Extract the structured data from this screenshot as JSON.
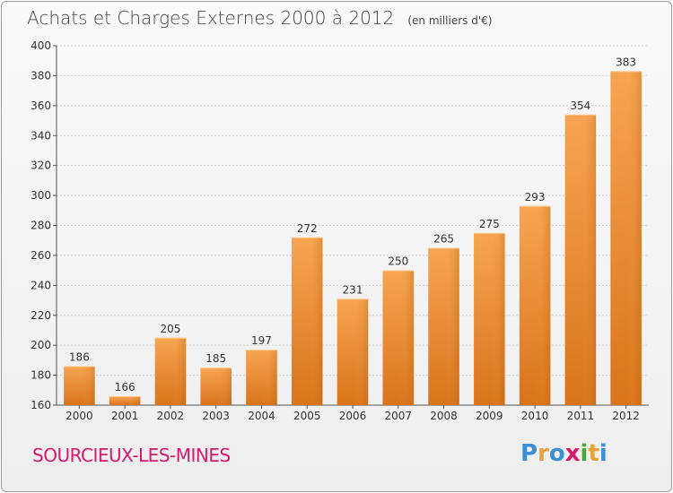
{
  "chart_data": {
    "type": "bar",
    "title": "Achats et Charges Externes 2000 à 2012",
    "subtitle": "(en milliers d'€)",
    "categories": [
      "2000",
      "2001",
      "2002",
      "2003",
      "2004",
      "2005",
      "2006",
      "2007",
      "2008",
      "2009",
      "2010",
      "2011",
      "2012"
    ],
    "values": [
      186,
      166,
      205,
      185,
      197,
      272,
      231,
      250,
      265,
      275,
      293,
      354,
      383
    ],
    "ylim": [
      160,
      400
    ],
    "yticks": [
      160,
      180,
      200,
      220,
      240,
      260,
      280,
      300,
      320,
      340,
      360,
      380,
      400
    ],
    "xlabel": "",
    "ylabel": "",
    "grid": true,
    "bar_color": "#f0902a"
  },
  "town": "SOURCIEUX-LES-MINES",
  "brand": {
    "letters": [
      "P",
      "r",
      "o",
      "x",
      "i",
      "t",
      "i"
    ],
    "colors": [
      "#3a8fd6",
      "#e8a23a",
      "#3a8fd6",
      "#d6196a",
      "#4aa83a",
      "#e8a23a",
      "#3a8fd6"
    ]
  }
}
